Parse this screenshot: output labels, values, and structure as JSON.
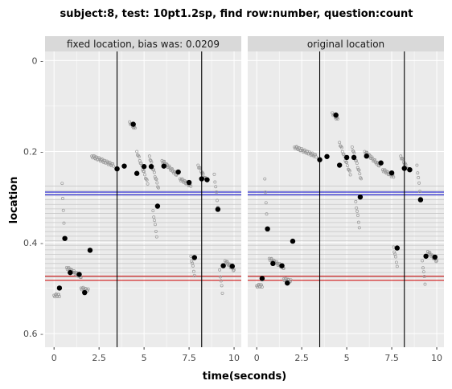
{
  "chart_data": {
    "type": "scatter",
    "title": "subject:8, test: 10pt1.2sp, find row:number, question:count",
    "xlabel": "time(seconds)",
    "ylabel": "location",
    "xlim": [
      -0.5,
      10.4
    ],
    "ylim": [
      0.63,
      -0.02
    ],
    "y_reversed": true,
    "x_ticks": [
      0,
      2.5,
      5,
      7.5,
      10
    ],
    "x_tick_labels": [
      "0",
      "2.5",
      "5",
      "7.5",
      "10"
    ],
    "y_ticks": [
      0,
      0.2,
      0.4,
      0.6
    ],
    "y_tick_labels": [
      "0 -",
      "0.2 -",
      "0.4 -",
      "0.6 -"
    ],
    "grid": true,
    "colors": {
      "panel_bg": "#ebebeb",
      "strip_bg": "#d9d9d9",
      "grid": "#ffffff",
      "row_lines": "#c8c8c8",
      "blue": "#0000cc",
      "red": "#cc0000",
      "fixation": "#000000",
      "raw": "#999999"
    },
    "row_lines": [
      0.276,
      0.286,
      0.296,
      0.306,
      0.316,
      0.326,
      0.336,
      0.346,
      0.356,
      0.366,
      0.376,
      0.386,
      0.396,
      0.406,
      0.416,
      0.426,
      0.436,
      0.446,
      0.456,
      0.466,
      0.476
    ],
    "blue_lines": [
      0.289,
      0.295
    ],
    "red_lines": [
      0.474,
      0.483
    ],
    "vlines": [
      3.5,
      8.2
    ],
    "panels": [
      {
        "strip": "fixed location, bias was: 0.0209",
        "fixations": [
          {
            "x": 0.3,
            "y": 0.5
          },
          {
            "x": 0.6,
            "y": 0.391
          },
          {
            "x": 0.9,
            "y": 0.466
          },
          {
            "x": 1.4,
            "y": 0.47
          },
          {
            "x": 1.7,
            "y": 0.51
          },
          {
            "x": 2.0,
            "y": 0.417
          },
          {
            "x": 3.5,
            "y": 0.238
          },
          {
            "x": 3.9,
            "y": 0.232
          },
          {
            "x": 4.4,
            "y": 0.14
          },
          {
            "x": 4.6,
            "y": 0.248
          },
          {
            "x": 5.0,
            "y": 0.233
          },
          {
            "x": 5.4,
            "y": 0.233
          },
          {
            "x": 5.75,
            "y": 0.32
          },
          {
            "x": 6.1,
            "y": 0.232
          },
          {
            "x": 6.9,
            "y": 0.245
          },
          {
            "x": 7.5,
            "y": 0.268
          },
          {
            "x": 7.8,
            "y": 0.433
          },
          {
            "x": 8.2,
            "y": 0.26
          },
          {
            "x": 8.5,
            "y": 0.262
          },
          {
            "x": 9.1,
            "y": 0.327
          },
          {
            "x": 9.4,
            "y": 0.451
          },
          {
            "x": 9.9,
            "y": 0.452
          }
        ],
        "raw_segments": [
          {
            "t0": 0.0,
            "t1": 0.3,
            "y0": 0.516,
            "y1": 0.516
          },
          {
            "t0": 0.45,
            "t1": 0.55,
            "y0": 0.27,
            "y1": 0.36
          },
          {
            "t0": 0.7,
            "t1": 1.5,
            "y0": 0.455,
            "y1": 0.475
          },
          {
            "t0": 1.5,
            "t1": 1.9,
            "y0": 0.5,
            "y1": 0.505
          },
          {
            "t0": 2.1,
            "t1": 3.3,
            "y0": 0.21,
            "y1": 0.23
          },
          {
            "t0": 4.2,
            "t1": 4.5,
            "y0": 0.135,
            "y1": 0.15
          },
          {
            "t0": 4.6,
            "t1": 5.2,
            "y0": 0.2,
            "y1": 0.27
          },
          {
            "t0": 5.3,
            "t1": 5.8,
            "y0": 0.21,
            "y1": 0.28
          },
          {
            "t0": 5.5,
            "t1": 5.7,
            "y0": 0.33,
            "y1": 0.385
          },
          {
            "t0": 6.0,
            "t1": 6.8,
            "y0": 0.22,
            "y1": 0.25
          },
          {
            "t0": 7.0,
            "t1": 7.6,
            "y0": 0.26,
            "y1": 0.275
          },
          {
            "t0": 7.6,
            "t1": 7.8,
            "y0": 0.43,
            "y1": 0.47
          },
          {
            "t0": 8.0,
            "t1": 8.4,
            "y0": 0.23,
            "y1": 0.26
          },
          {
            "t0": 8.9,
            "t1": 9.1,
            "y0": 0.25,
            "y1": 0.32
          },
          {
            "t0": 9.2,
            "t1": 9.35,
            "y0": 0.46,
            "y1": 0.51
          },
          {
            "t0": 9.5,
            "t1": 10.0,
            "y0": 0.44,
            "y1": 0.46
          }
        ]
      },
      {
        "strip": "original location",
        "fixations": [
          {
            "x": 0.3,
            "y": 0.479
          },
          {
            "x": 0.6,
            "y": 0.37
          },
          {
            "x": 0.9,
            "y": 0.446
          },
          {
            "x": 1.4,
            "y": 0.451
          },
          {
            "x": 1.7,
            "y": 0.489
          },
          {
            "x": 2.0,
            "y": 0.397
          },
          {
            "x": 3.5,
            "y": 0.218
          },
          {
            "x": 3.9,
            "y": 0.211
          },
          {
            "x": 4.4,
            "y": 0.12
          },
          {
            "x": 4.6,
            "y": 0.23
          },
          {
            "x": 5.0,
            "y": 0.213
          },
          {
            "x": 5.4,
            "y": 0.213
          },
          {
            "x": 5.75,
            "y": 0.3
          },
          {
            "x": 6.1,
            "y": 0.21
          },
          {
            "x": 6.9,
            "y": 0.225
          },
          {
            "x": 7.5,
            "y": 0.247
          },
          {
            "x": 7.8,
            "y": 0.412
          },
          {
            "x": 8.2,
            "y": 0.237
          },
          {
            "x": 8.5,
            "y": 0.24
          },
          {
            "x": 9.1,
            "y": 0.306
          },
          {
            "x": 9.4,
            "y": 0.43
          },
          {
            "x": 9.9,
            "y": 0.432
          }
        ],
        "raw_segments": [
          {
            "t0": 0.0,
            "t1": 0.3,
            "y0": 0.495,
            "y1": 0.495
          },
          {
            "t0": 0.45,
            "t1": 0.55,
            "y0": 0.26,
            "y1": 0.34
          },
          {
            "t0": 0.7,
            "t1": 1.5,
            "y0": 0.435,
            "y1": 0.455
          },
          {
            "t0": 1.5,
            "t1": 1.9,
            "y0": 0.48,
            "y1": 0.485
          },
          {
            "t0": 2.1,
            "t1": 3.3,
            "y0": 0.19,
            "y1": 0.21
          },
          {
            "t0": 4.2,
            "t1": 4.5,
            "y0": 0.115,
            "y1": 0.13
          },
          {
            "t0": 4.6,
            "t1": 5.2,
            "y0": 0.18,
            "y1": 0.25
          },
          {
            "t0": 5.3,
            "t1": 5.8,
            "y0": 0.19,
            "y1": 0.26
          },
          {
            "t0": 5.5,
            "t1": 5.7,
            "y0": 0.31,
            "y1": 0.365
          },
          {
            "t0": 6.0,
            "t1": 6.8,
            "y0": 0.2,
            "y1": 0.23
          },
          {
            "t0": 7.0,
            "t1": 7.6,
            "y0": 0.24,
            "y1": 0.255
          },
          {
            "t0": 7.6,
            "t1": 7.8,
            "y0": 0.41,
            "y1": 0.45
          },
          {
            "t0": 8.0,
            "t1": 8.4,
            "y0": 0.21,
            "y1": 0.24
          },
          {
            "t0": 8.9,
            "t1": 9.1,
            "y0": 0.23,
            "y1": 0.3
          },
          {
            "t0": 9.2,
            "t1": 9.35,
            "y0": 0.44,
            "y1": 0.49
          },
          {
            "t0": 9.5,
            "t1": 10.0,
            "y0": 0.42,
            "y1": 0.44
          }
        ]
      }
    ]
  }
}
